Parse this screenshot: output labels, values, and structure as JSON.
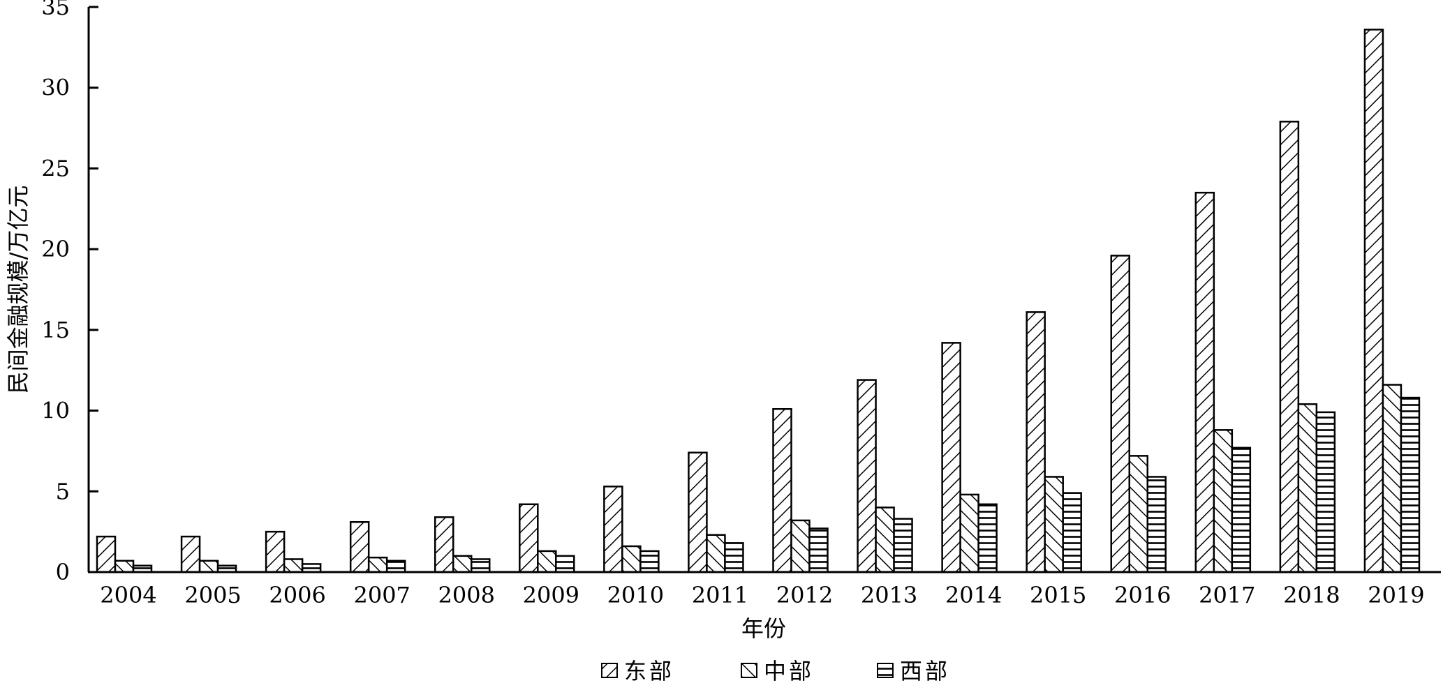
{
  "chart_data": {
    "type": "bar",
    "categories": [
      "2004",
      "2005",
      "2006",
      "2007",
      "2008",
      "2009",
      "2010",
      "2011",
      "2012",
      "2013",
      "2014",
      "2015",
      "2016",
      "2017",
      "2018",
      "2019"
    ],
    "series": [
      {
        "name": "东部",
        "pattern": "diagonal-right",
        "values": [
          2.2,
          2.2,
          2.5,
          3.1,
          3.4,
          4.2,
          5.3,
          7.4,
          10.1,
          11.9,
          14.2,
          16.1,
          19.6,
          23.5,
          27.9,
          33.6
        ]
      },
      {
        "name": "中部",
        "pattern": "diagonal-left",
        "values": [
          0.7,
          0.7,
          0.8,
          0.9,
          1.0,
          1.3,
          1.6,
          2.3,
          3.2,
          4.0,
          4.8,
          5.9,
          7.2,
          8.8,
          10.4,
          11.6
        ]
      },
      {
        "name": "西部",
        "pattern": "horizontal",
        "values": [
          0.4,
          0.4,
          0.5,
          0.7,
          0.8,
          1.0,
          1.3,
          1.8,
          2.7,
          3.3,
          4.2,
          4.9,
          5.9,
          7.7,
          9.9,
          10.8
        ]
      }
    ],
    "xlabel": "年份",
    "ylabel": "民间金融规模/万亿元",
    "ylim": [
      0,
      35
    ],
    "yticks": [
      "0",
      "5",
      "10",
      "15",
      "20",
      "25",
      "30",
      "35"
    ],
    "grid": false,
    "legend_position": "bottom-center"
  }
}
